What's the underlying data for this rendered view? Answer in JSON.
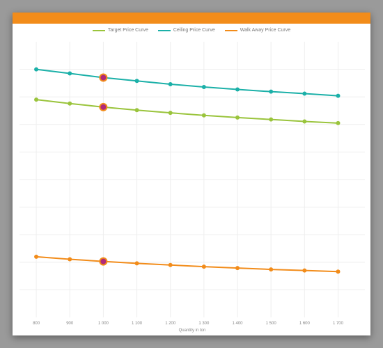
{
  "chart": {
    "type": "line",
    "topbar_color": "#f28c1a",
    "background_color": "#ffffff",
    "grid_color": "#eeeeee",
    "x_title": "Quantity in ton",
    "x_title_fontsize": 6,
    "axis_label_fontsize": 6,
    "axis_label_color": "#888888",
    "x": {
      "values": [
        800,
        900,
        1000,
        1100,
        1200,
        1300,
        1400,
        1500,
        1600,
        1700
      ],
      "labels": [
        "800",
        "900",
        "1 000",
        "1 100",
        "1 200",
        "1 300",
        "1 400",
        "1 500",
        "1 600",
        "1 700"
      ],
      "min": 750,
      "max": 1780
    },
    "y": {
      "min": 0,
      "max": 100,
      "gridlines": [
        10,
        20,
        30,
        40,
        50,
        60,
        70,
        80,
        90
      ]
    },
    "highlight_x": 1000,
    "highlight_marker": {
      "radius": 5,
      "fill": "#b02a7a",
      "stroke": "#f28c1a",
      "stroke_width": 2
    },
    "marker_radius": 3,
    "line_width": 2,
    "legend": {
      "fontsize": 7,
      "color": "#777777",
      "items": [
        {
          "label": "Target Price Curve",
          "color": "#9ac43c"
        },
        {
          "label": "Ceiling Price Curve",
          "color": "#1bb0a8"
        },
        {
          "label": "Walk Away Price Curve",
          "color": "#f28c1a"
        }
      ]
    },
    "series": [
      {
        "name": "Ceiling Price Curve",
        "color": "#1bb0a8",
        "y": [
          90,
          88.5,
          87,
          85.8,
          84.6,
          83.6,
          82.7,
          81.9,
          81.2,
          80.4
        ]
      },
      {
        "name": "Target Price Curve",
        "color": "#9ac43c",
        "y": [
          79,
          77.6,
          76.3,
          75.2,
          74.2,
          73.3,
          72.5,
          71.8,
          71.1,
          70.5
        ]
      },
      {
        "name": "Walk Away Price Curve",
        "color": "#f28c1a",
        "y": [
          22,
          21.1,
          20.3,
          19.6,
          19.0,
          18.4,
          17.9,
          17.4,
          17.0,
          16.6
        ]
      }
    ]
  }
}
